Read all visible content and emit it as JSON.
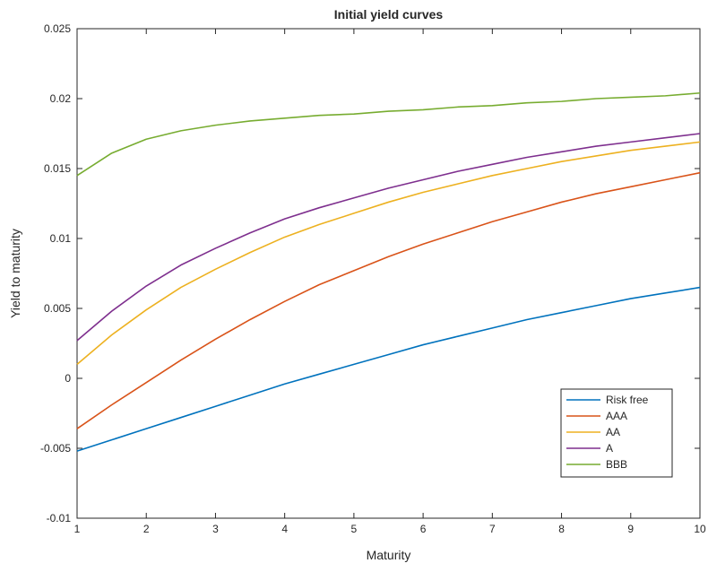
{
  "chart_data": {
    "type": "line",
    "title": "Initial yield curves",
    "xlabel": "Maturity",
    "ylabel": "Yield to maturity",
    "xlim": [
      1,
      10
    ],
    "ylim": [
      -0.01,
      0.025
    ],
    "xticks": [
      1,
      2,
      3,
      4,
      5,
      6,
      7,
      8,
      9,
      10
    ],
    "yticks": [
      -0.01,
      -0.005,
      0,
      0.005,
      0.01,
      0.015,
      0.02,
      0.025
    ],
    "ytick_labels": [
      "-0.01",
      "-0.005",
      "0",
      "0.005",
      "0.01",
      "0.015",
      "0.02",
      "0.025"
    ],
    "grid": false,
    "legend_position": "bottom-right",
    "x": [
      1,
      1.5,
      2,
      2.5,
      3,
      3.5,
      4,
      4.5,
      5,
      5.5,
      6,
      6.5,
      7,
      7.5,
      8,
      8.5,
      9,
      9.5,
      10
    ],
    "series": [
      {
        "name": "Risk free",
        "color": "#0072BD",
        "values": [
          -0.0052,
          -0.0044,
          -0.0036,
          -0.0028,
          -0.002,
          -0.0012,
          -0.0004,
          0.0003,
          0.001,
          0.0017,
          0.0024,
          0.003,
          0.0036,
          0.0042,
          0.0047,
          0.0052,
          0.0057,
          0.0061,
          0.0065
        ]
      },
      {
        "name": "AAA",
        "color": "#D95319",
        "values": [
          -0.0036,
          -0.0019,
          -0.0003,
          0.0013,
          0.0028,
          0.0042,
          0.0055,
          0.0067,
          0.0077,
          0.0087,
          0.0096,
          0.0104,
          0.0112,
          0.0119,
          0.0126,
          0.0132,
          0.0137,
          0.0142,
          0.0147
        ]
      },
      {
        "name": "AA",
        "color": "#EDB120",
        "values": [
          0.001,
          0.0031,
          0.0049,
          0.0065,
          0.0078,
          0.009,
          0.0101,
          0.011,
          0.0118,
          0.0126,
          0.0133,
          0.0139,
          0.0145,
          0.015,
          0.0155,
          0.0159,
          0.0163,
          0.0166,
          0.0169
        ]
      },
      {
        "name": "A",
        "color": "#7E2F8E",
        "values": [
          0.0027,
          0.0048,
          0.0066,
          0.0081,
          0.0093,
          0.0104,
          0.0114,
          0.0122,
          0.0129,
          0.0136,
          0.0142,
          0.0148,
          0.0153,
          0.0158,
          0.0162,
          0.0166,
          0.0169,
          0.0172,
          0.0175
        ]
      },
      {
        "name": "BBB",
        "color": "#77AC30",
        "values": [
          0.0145,
          0.0161,
          0.0171,
          0.0177,
          0.0181,
          0.0184,
          0.0186,
          0.0188,
          0.0189,
          0.0191,
          0.0192,
          0.0194,
          0.0195,
          0.0197,
          0.0198,
          0.02,
          0.0201,
          0.0202,
          0.0204
        ]
      }
    ]
  }
}
